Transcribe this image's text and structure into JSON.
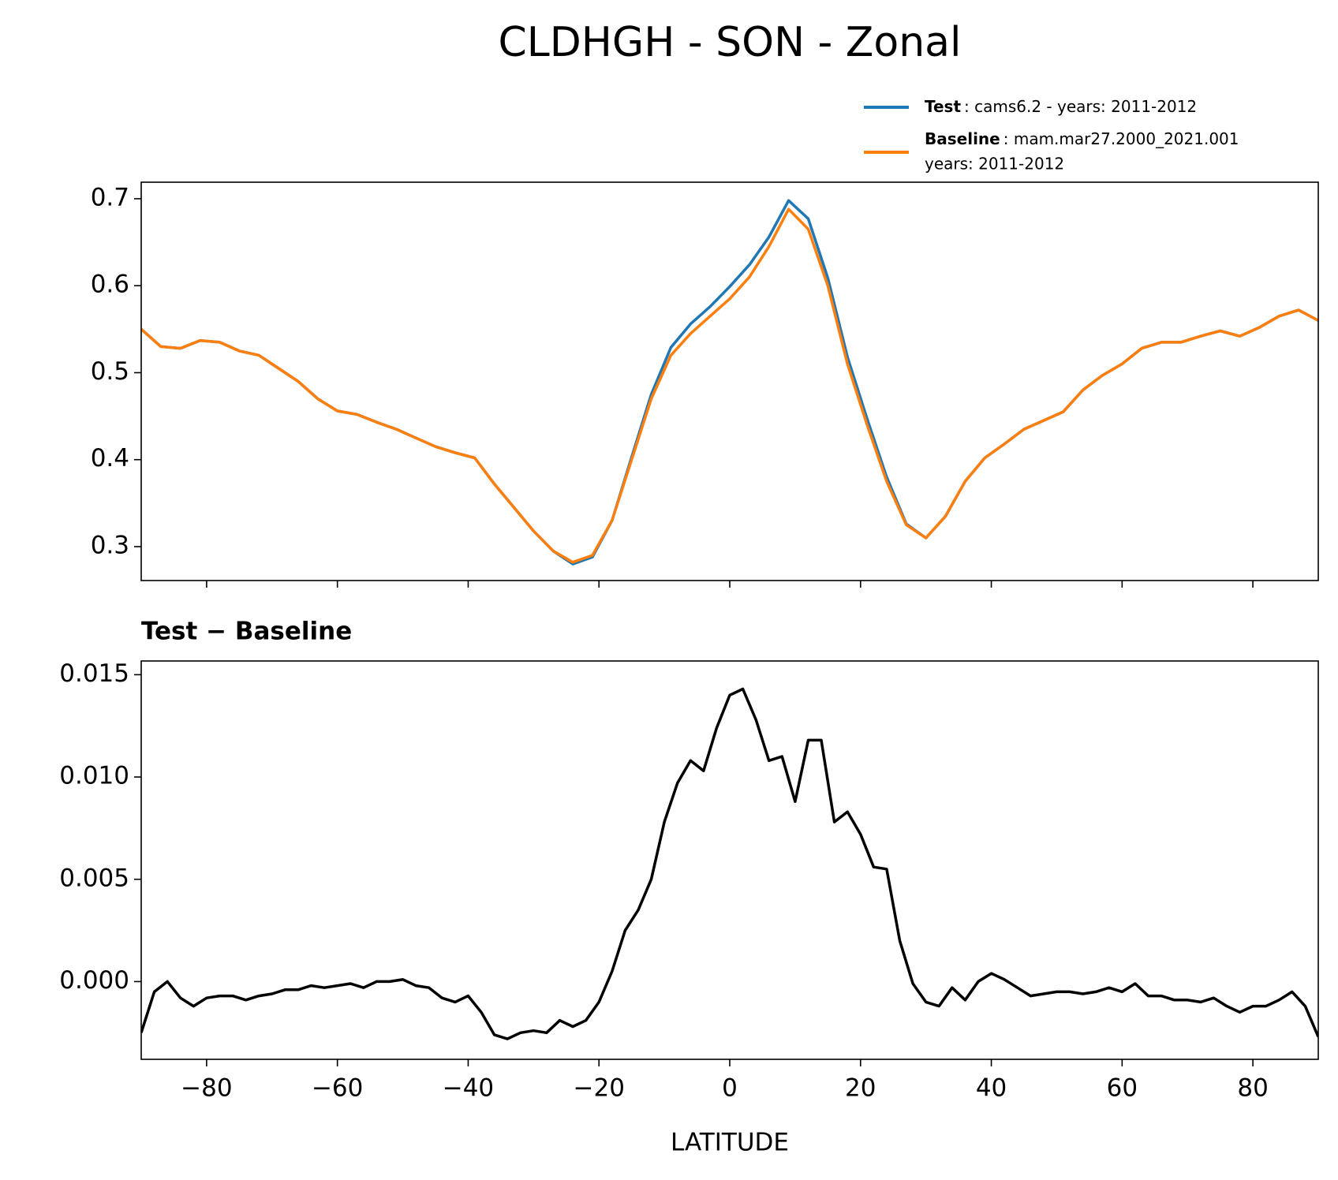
{
  "chart_data": [
    {
      "type": "line",
      "title": "CLDHGH - SON - Zonal",
      "legend": "upper right",
      "x": [
        -90,
        -87,
        -84,
        -81,
        -78,
        -75,
        -72,
        -69,
        -66,
        -63,
        -60,
        -57,
        -54,
        -51,
        -48,
        -45,
        -42,
        -39,
        -36,
        -33,
        -30,
        -27,
        -24,
        -21,
        -18,
        -15,
        -12,
        -9,
        -6,
        -3,
        0,
        3,
        6,
        9,
        12,
        15,
        18,
        21,
        24,
        27,
        30,
        33,
        36,
        39,
        42,
        45,
        48,
        51,
        54,
        57,
        60,
        63,
        66,
        69,
        72,
        75,
        78,
        81,
        84,
        87,
        90
      ],
      "series": [
        {
          "name": "Test",
          "legend_text": [
            ": cams6.2 - years: 2011-2012"
          ],
          "color": "#1f77b4",
          "values": [
            0.55,
            0.53,
            0.528,
            0.537,
            0.535,
            0.525,
            0.52,
            0.505,
            0.49,
            0.47,
            0.456,
            0.452,
            0.443,
            0.435,
            0.425,
            0.415,
            0.408,
            0.402,
            0.372,
            0.345,
            0.318,
            0.295,
            0.28,
            0.288,
            0.33,
            0.403,
            0.475,
            0.529,
            0.556,
            0.576,
            0.599,
            0.624,
            0.656,
            0.698,
            0.677,
            0.609,
            0.518,
            0.447,
            0.38,
            0.326,
            0.31,
            0.335,
            0.375,
            0.402,
            0.418,
            0.435,
            0.445,
            0.455,
            0.48,
            0.497,
            0.51,
            0.528,
            0.535,
            0.535,
            0.542,
            0.548,
            0.542,
            0.552,
            0.565,
            0.572,
            0.56
          ]
        },
        {
          "name": "Baseline",
          "legend_text": [
            ": mam.mar27.2000_2021.001",
            "years: 2011-2012"
          ],
          "color": "#ff7f0e",
          "values": [
            0.55,
            0.53,
            0.528,
            0.537,
            0.535,
            0.525,
            0.52,
            0.505,
            0.49,
            0.47,
            0.456,
            0.452,
            0.443,
            0.435,
            0.425,
            0.415,
            0.408,
            0.402,
            0.372,
            0.345,
            0.318,
            0.295,
            0.282,
            0.29,
            0.33,
            0.4,
            0.47,
            0.52,
            0.545,
            0.565,
            0.585,
            0.61,
            0.645,
            0.688,
            0.665,
            0.6,
            0.51,
            0.44,
            0.375,
            0.325,
            0.31,
            0.335,
            0.375,
            0.402,
            0.418,
            0.435,
            0.445,
            0.455,
            0.48,
            0.497,
            0.51,
            0.528,
            0.535,
            0.535,
            0.542,
            0.548,
            0.542,
            0.552,
            0.565,
            0.572,
            0.56
          ]
        }
      ],
      "xlim": [
        -90,
        90
      ],
      "xticks": [
        -80,
        -60,
        -40,
        -20,
        0,
        20,
        40,
        60,
        80
      ],
      "ylim": [
        0.261,
        0.719
      ],
      "yticks": [
        0.3,
        0.4,
        0.5,
        0.6,
        0.7
      ]
    },
    {
      "type": "line",
      "title": "Test − Baseline",
      "xlabel": "LATITUDE",
      "x": [
        -90,
        -88,
        -86,
        -84,
        -82,
        -80,
        -78,
        -76,
        -74,
        -72,
        -70,
        -68,
        -66,
        -64,
        -62,
        -60,
        -58,
        -56,
        -54,
        -52,
        -50,
        -48,
        -46,
        -44,
        -42,
        -40,
        -38,
        -36,
        -34,
        -32,
        -30,
        -28,
        -26,
        -24,
        -22,
        -20,
        -18,
        -16,
        -14,
        -12,
        -10,
        -8,
        -6,
        -4,
        -2,
        0,
        2,
        4,
        6,
        8,
        10,
        12,
        14,
        16,
        18,
        20,
        22,
        24,
        26,
        28,
        30,
        32,
        34,
        36,
        38,
        40,
        42,
        44,
        46,
        48,
        50,
        52,
        54,
        56,
        58,
        60,
        62,
        64,
        66,
        68,
        70,
        72,
        74,
        76,
        78,
        80,
        82,
        84,
        86,
        88,
        90
      ],
      "series": [
        {
          "color": "#000000",
          "values": [
            -0.0025,
            -0.0005,
            0.0,
            -0.0008,
            -0.0012,
            -0.0008,
            -0.0007,
            -0.0007,
            -0.0009,
            -0.0007,
            -0.0006,
            -0.0004,
            -0.0004,
            -0.0002,
            -0.0003,
            -0.0002,
            -0.0001,
            -0.0003,
            0.0,
            0.0,
            0.0001,
            -0.0002,
            -0.0003,
            -0.0008,
            -0.001,
            -0.0007,
            -0.0015,
            -0.0026,
            -0.0028,
            -0.0025,
            -0.0024,
            -0.0025,
            -0.0019,
            -0.0022,
            -0.0019,
            -0.001,
            0.0005,
            0.0025,
            0.0035,
            0.005,
            0.0078,
            0.0097,
            0.0108,
            0.0103,
            0.0124,
            0.014,
            0.0143,
            0.0128,
            0.0108,
            0.011,
            0.0088,
            0.0118,
            0.0118,
            0.0078,
            0.0083,
            0.0072,
            0.0056,
            0.0055,
            0.002,
            -0.0001,
            -0.001,
            -0.0012,
            -0.0003,
            -0.0009,
            0.0,
            0.0004,
            0.0001,
            -0.0003,
            -0.0007,
            -0.0006,
            -0.0005,
            -0.0005,
            -0.0006,
            -0.0005,
            -0.0003,
            -0.0005,
            -0.0001,
            -0.0007,
            -0.0007,
            -0.0009,
            -0.0009,
            -0.001,
            -0.0008,
            -0.0012,
            -0.0015,
            -0.0012,
            -0.0012,
            -0.0009,
            -0.0005,
            -0.0012,
            -0.0027
          ]
        }
      ],
      "xlim": [
        -90,
        90
      ],
      "xticks": [
        {
          "value": -80,
          "label": "−80"
        },
        {
          "value": -60,
          "label": "−60"
        },
        {
          "value": -40,
          "label": "−40"
        },
        {
          "value": -20,
          "label": "−20"
        },
        0,
        20,
        40,
        60,
        80
      ],
      "ylim": [
        -0.0038,
        0.01567
      ],
      "yticks": [
        {
          "value": 0,
          "label": "0.000"
        },
        {
          "value": 0.005,
          "label": "0.005"
        },
        {
          "value": 0.01,
          "label": "0.010"
        },
        {
          "value": 0.015,
          "label": "0.015"
        }
      ]
    }
  ]
}
